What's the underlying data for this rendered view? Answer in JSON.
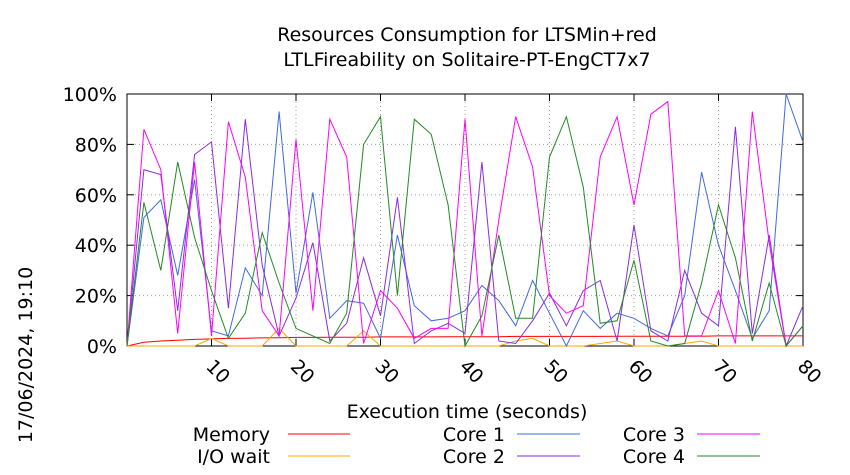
{
  "chart_data": {
    "type": "line",
    "title": [
      "Resources Consumption for LTSMin+red",
      "LTLFireability on Solitaire-PT-EngCT7x7"
    ],
    "xlabel": "Execution time (seconds)",
    "ylabel": "",
    "side_label": "17/06/2024, 19:10",
    "xlim": [
      0,
      80
    ],
    "ylim": [
      0,
      100
    ],
    "xticks": [
      {
        "v": 10,
        "label": "10"
      },
      {
        "v": 20,
        "label": "20"
      },
      {
        "v": 30,
        "label": "30"
      },
      {
        "v": 40,
        "label": "40"
      },
      {
        "v": 50,
        "label": "50"
      },
      {
        "v": 60,
        "label": "60"
      },
      {
        "v": 70,
        "label": "70"
      },
      {
        "v": 80,
        "label": "80"
      }
    ],
    "yticks": [
      {
        "v": 0,
        "label": "0%"
      },
      {
        "v": 20,
        "label": "20%"
      },
      {
        "v": 40,
        "label": "40%"
      },
      {
        "v": 60,
        "label": "60%"
      },
      {
        "v": 80,
        "label": "80%"
      },
      {
        "v": 100,
        "label": "100%"
      }
    ],
    "grid": true,
    "legend_position": "bottom",
    "series": [
      {
        "name": "Memory",
        "color": "#ff0000",
        "x": [
          0,
          2,
          4,
          6,
          8,
          10,
          12,
          14,
          16,
          18,
          20,
          22,
          24,
          26,
          28,
          30,
          32,
          34,
          36,
          38,
          40,
          42,
          44,
          46,
          48,
          50,
          52,
          54,
          56,
          58,
          60,
          62,
          64,
          66,
          68,
          70,
          72,
          74,
          76,
          78,
          80
        ],
        "y": [
          0,
          1.5,
          2,
          2.3,
          2.6,
          2.8,
          3,
          3.1,
          3.2,
          3.3,
          3.4,
          3.4,
          3.5,
          3.5,
          3.5,
          3.6,
          3.6,
          3.6,
          3.6,
          3.7,
          3.7,
          3.7,
          3.7,
          3.8,
          3.8,
          3.8,
          3.8,
          3.8,
          3.8,
          3.9,
          3.9,
          3.9,
          3.9,
          3.9,
          3.9,
          4,
          4,
          4,
          4,
          4,
          4
        ]
      },
      {
        "name": "I/O wait",
        "color": "#ffa500",
        "x": [
          0,
          4,
          8,
          10,
          12,
          16,
          18,
          20,
          22,
          26,
          28,
          30,
          32,
          36,
          40,
          44,
          46,
          48,
          50,
          54,
          58,
          60,
          64,
          68,
          70,
          74,
          78,
          80
        ],
        "y": [
          0,
          0,
          0,
          3,
          0,
          0,
          7,
          0,
          0,
          0,
          6,
          0,
          0,
          0,
          0,
          0,
          2,
          3,
          0,
          0,
          2,
          0,
          0,
          2,
          0,
          0,
          0,
          0
        ]
      },
      {
        "name": "Core 1",
        "color": "#4169e1",
        "x": [
          0,
          2,
          4,
          6,
          8,
          10,
          12,
          14,
          16,
          18,
          20,
          22,
          24,
          26,
          28,
          30,
          32,
          34,
          36,
          38,
          40,
          42,
          44,
          46,
          48,
          50,
          52,
          54,
          56,
          58,
          60,
          62,
          64,
          66,
          68,
          70,
          72,
          74,
          76,
          78,
          80
        ],
        "y": [
          0,
          51,
          58,
          28,
          66,
          6,
          4,
          31,
          20,
          93,
          21,
          61,
          11,
          18,
          17,
          3,
          44,
          16,
          10,
          11,
          14,
          24,
          18,
          8,
          26,
          13,
          0,
          14,
          7,
          13,
          11,
          7,
          4,
          20,
          69,
          40,
          22,
          3,
          14,
          100,
          81
        ]
      },
      {
        "name": "Core 2",
        "color": "#8a2be2",
        "x": [
          0,
          2,
          4,
          6,
          8,
          10,
          12,
          14,
          16,
          18,
          20,
          22,
          24,
          26,
          28,
          30,
          32,
          34,
          36,
          38,
          40,
          42,
          44,
          46,
          48,
          50,
          52,
          54,
          56,
          58,
          60,
          62,
          64,
          66,
          68,
          70,
          72,
          74,
          76,
          78,
          80
        ],
        "y": [
          0,
          70,
          68,
          14,
          76,
          81,
          15,
          90,
          32,
          4,
          19,
          41,
          2,
          9,
          35,
          12,
          59,
          1,
          6,
          9,
          5,
          73,
          2,
          1,
          10,
          21,
          8,
          22,
          26,
          2,
          48,
          6,
          2,
          30,
          13,
          8,
          87,
          5,
          44,
          0,
          16
        ]
      },
      {
        "name": "Core 3",
        "color": "#ff00ff",
        "x": [
          0,
          2,
          4,
          6,
          8,
          10,
          12,
          14,
          16,
          18,
          20,
          22,
          24,
          26,
          28,
          30,
          32,
          34,
          36,
          38,
          40,
          42,
          44,
          46,
          48,
          50,
          52,
          54,
          56,
          58,
          60,
          62,
          64,
          66,
          68,
          70,
          72,
          74,
          76,
          78,
          80
        ],
        "y": [
          0,
          86,
          70,
          5,
          73,
          4,
          89,
          67,
          14,
          4,
          82,
          14,
          90,
          75,
          1,
          22,
          15,
          3,
          7,
          7,
          90,
          4,
          50,
          91,
          71,
          20,
          13,
          16,
          75,
          91,
          56,
          92,
          97,
          4,
          4,
          22,
          1,
          93,
          41,
          0,
          8
        ]
      },
      {
        "name": "Core 4",
        "color": "#228b22",
        "x": [
          0,
          2,
          4,
          6,
          8,
          10,
          12,
          14,
          16,
          18,
          20,
          22,
          24,
          26,
          28,
          30,
          32,
          34,
          36,
          38,
          40,
          42,
          44,
          46,
          48,
          50,
          52,
          54,
          56,
          58,
          60,
          62,
          64,
          66,
          68,
          70,
          72,
          74,
          76,
          78,
          80
        ],
        "y": [
          0,
          57,
          30,
          73,
          43,
          22,
          3,
          13,
          45,
          25,
          7,
          4,
          1,
          13,
          80,
          91,
          20,
          90,
          84,
          56,
          0,
          12,
          44,
          11,
          11,
          75,
          91,
          63,
          9,
          10,
          34,
          2,
          0,
          1,
          25,
          56,
          35,
          2,
          25,
          0,
          8
        ]
      }
    ]
  }
}
